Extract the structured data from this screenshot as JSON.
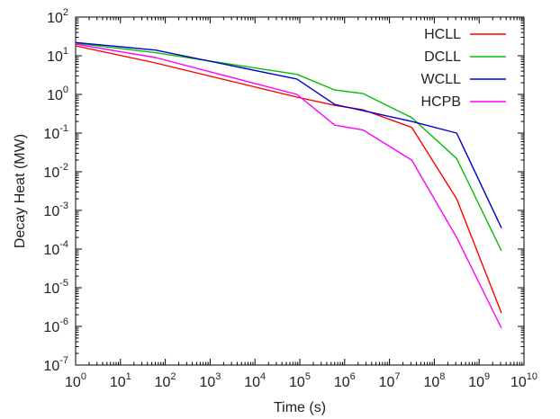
{
  "chart_data": {
    "type": "line",
    "title": "",
    "xlabel": "Time (s)",
    "ylabel": "Decay Heat (MW)",
    "x_scale": "log",
    "y_scale": "log",
    "xlim": [
      1,
      10000000000.0
    ],
    "ylim": [
      1e-07,
      100
    ],
    "grid": false,
    "legend_position": "top-right",
    "x_tick_labels": [
      {
        "base": "10",
        "exp": "0"
      },
      {
        "base": "10",
        "exp": "1"
      },
      {
        "base": "10",
        "exp": "2"
      },
      {
        "base": "10",
        "exp": "3"
      },
      {
        "base": "10",
        "exp": "4"
      },
      {
        "base": "10",
        "exp": "5"
      },
      {
        "base": "10",
        "exp": "6"
      },
      {
        "base": "10",
        "exp": "7"
      },
      {
        "base": "10",
        "exp": "8"
      },
      {
        "base": "10",
        "exp": "9"
      },
      {
        "base": "10",
        "exp": "10"
      }
    ],
    "y_tick_labels": [
      {
        "base": "10",
        "exp": "2"
      },
      {
        "base": "10",
        "exp": "1"
      },
      {
        "base": "10",
        "exp": "0"
      },
      {
        "base": "10",
        "exp": "-1"
      },
      {
        "base": "10",
        "exp": "-2"
      },
      {
        "base": "10",
        "exp": "-3"
      },
      {
        "base": "10",
        "exp": "-4"
      },
      {
        "base": "10",
        "exp": "-5"
      },
      {
        "base": "10",
        "exp": "-6"
      },
      {
        "base": "10",
        "exp": "-7"
      }
    ],
    "series": [
      {
        "name": "HCLL",
        "color": "#ff0000",
        "x": [
          1,
          60,
          86400,
          604800,
          2592000,
          31536000,
          315360000,
          3153600000
        ],
        "y": [
          18,
          6.5,
          0.85,
          0.52,
          0.4,
          0.14,
          0.002,
          2.2e-06
        ]
      },
      {
        "name": "DCLL",
        "color": "#00c000",
        "x": [
          1,
          60,
          86400,
          604800,
          2592000,
          31536000,
          315360000,
          3153600000
        ],
        "y": [
          21,
          12,
          3.3,
          1.3,
          1.05,
          0.25,
          0.022,
          9e-05
        ]
      },
      {
        "name": "WCLL",
        "color": "#0000cc",
        "x": [
          1,
          60,
          86400,
          604800,
          2592000,
          31536000,
          315360000,
          3153600000
        ],
        "y": [
          22,
          14,
          2.5,
          0.55,
          0.38,
          0.2,
          0.1,
          0.00035
        ]
      },
      {
        "name": "HCPB",
        "color": "#ff00ff",
        "x": [
          1,
          60,
          86400,
          604800,
          2592000,
          31536000,
          315360000,
          3153600000
        ],
        "y": [
          20,
          9,
          1.0,
          0.16,
          0.12,
          0.02,
          0.0002,
          9e-07
        ]
      }
    ]
  }
}
